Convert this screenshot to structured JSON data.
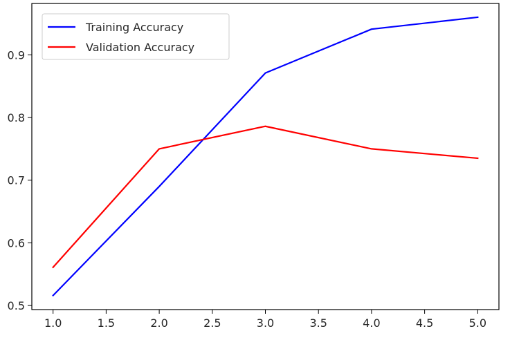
{
  "chart_data": {
    "type": "line",
    "x": [
      1.0,
      2.0,
      3.0,
      4.0,
      5.0
    ],
    "series": [
      {
        "name": "Training Accuracy",
        "color": "#0000ff",
        "values": [
          0.516,
          0.69,
          0.871,
          0.941,
          0.96
        ]
      },
      {
        "name": "Validation Accuracy",
        "color": "#ff0000",
        "values": [
          0.561,
          0.75,
          0.786,
          0.75,
          0.735
        ]
      }
    ],
    "title": "",
    "xlabel": "",
    "ylabel": "",
    "xlim": [
      0.8,
      5.2
    ],
    "ylim": [
      0.4935,
      0.982
    ],
    "xticks": [
      "1.0",
      "1.5",
      "2.0",
      "2.5",
      "3.0",
      "3.5",
      "4.0",
      "4.5",
      "5.0"
    ],
    "yticks": [
      "0.5",
      "0.6",
      "0.7",
      "0.8",
      "0.9"
    ],
    "grid": false,
    "legend_position": "top-left"
  }
}
